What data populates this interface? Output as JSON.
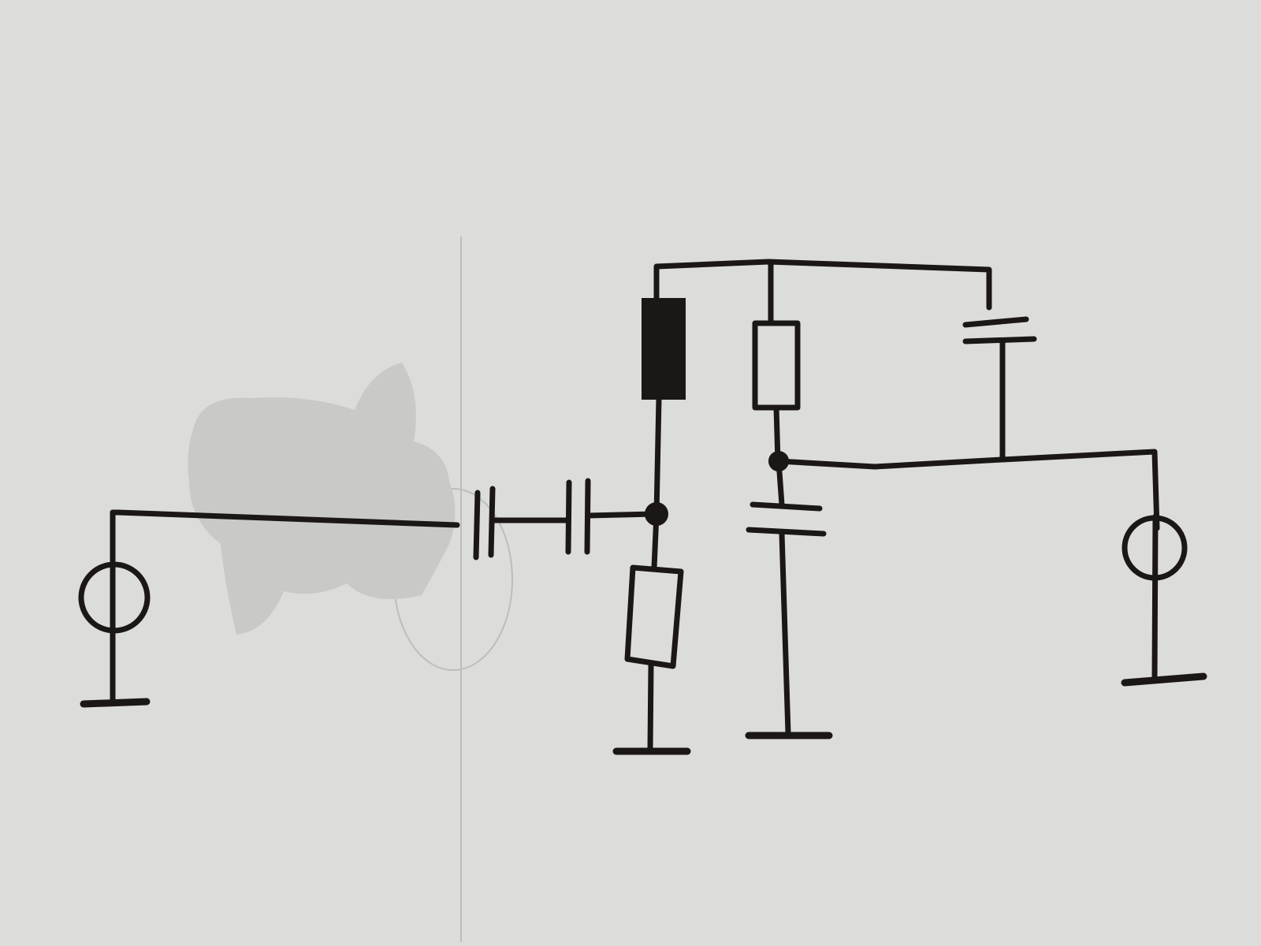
{
  "diagram": {
    "kind": "hand-drawn circuit schematic on paper",
    "components": [
      {
        "id": "source-left",
        "symbol": "voltage-source-circle"
      },
      {
        "id": "coupling-cap-1",
        "symbol": "capacitor"
      },
      {
        "id": "coupling-cap-2",
        "symbol": "capacitor"
      },
      {
        "id": "filled-element",
        "symbol": "filled-rectangle"
      },
      {
        "id": "resistor-lower",
        "symbol": "resistor"
      },
      {
        "id": "resistor-upper",
        "symbol": "resistor"
      },
      {
        "id": "cap-vertical",
        "symbol": "capacitor"
      },
      {
        "id": "cap-top-right",
        "symbol": "capacitor"
      },
      {
        "id": "source-right",
        "symbol": "voltage-source-circle"
      }
    ],
    "grounds": 4,
    "junction_dots": 2,
    "colors": {
      "paper": "#dcdcda",
      "ink": "#1b1715",
      "erased_patch": "#c9c9c6"
    }
  }
}
